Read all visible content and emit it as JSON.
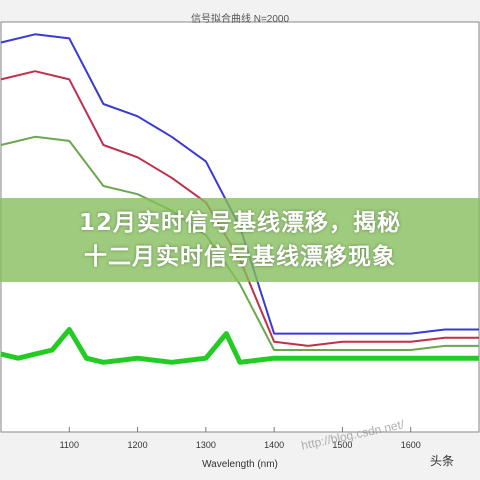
{
  "chart_data": {
    "type": "line",
    "title": "",
    "xlabel": "Wavelength (nm)",
    "ylabel": "",
    "xlim": [
      1000,
      1700
    ],
    "x_ticks": [
      1100,
      1200,
      1300,
      1400,
      1500,
      1600
    ],
    "grid": false,
    "series": [
      {
        "color": "#3a3ad4",
        "x": [
          1000,
          1050,
          1100,
          1150,
          1200,
          1250,
          1300,
          1350,
          1400,
          1450,
          1500,
          1550,
          1600,
          1650,
          1700
        ],
        "y": [
          0.95,
          0.97,
          0.96,
          0.8,
          0.77,
          0.72,
          0.66,
          0.5,
          0.24,
          0.24,
          0.24,
          0.24,
          0.24,
          0.25,
          0.25
        ]
      },
      {
        "color": "#c0304a",
        "x": [
          1000,
          1050,
          1100,
          1150,
          1200,
          1250,
          1300,
          1350,
          1400,
          1450,
          1500,
          1550,
          1600,
          1650,
          1700
        ],
        "y": [
          0.86,
          0.88,
          0.86,
          0.7,
          0.67,
          0.62,
          0.56,
          0.42,
          0.22,
          0.21,
          0.22,
          0.22,
          0.22,
          0.23,
          0.23
        ]
      },
      {
        "color": "#6aa84f",
        "x": [
          1000,
          1050,
          1100,
          1150,
          1200,
          1250,
          1300,
          1350,
          1400,
          1450,
          1500,
          1550,
          1600,
          1650,
          1700
        ],
        "y": [
          0.7,
          0.72,
          0.71,
          0.6,
          0.58,
          0.54,
          0.48,
          0.36,
          0.2,
          0.2,
          0.2,
          0.2,
          0.2,
          0.21,
          0.21
        ]
      },
      {
        "color": "#22cc22",
        "x": [
          1000,
          1025,
          1050,
          1075,
          1100,
          1125,
          1150,
          1200,
          1250,
          1300,
          1330,
          1350,
          1400,
          1450,
          1500,
          1550,
          1600,
          1650,
          1700
        ],
        "y": [
          0.19,
          0.18,
          0.19,
          0.2,
          0.25,
          0.18,
          0.17,
          0.18,
          0.17,
          0.18,
          0.24,
          0.17,
          0.18,
          0.18,
          0.18,
          0.18,
          0.18,
          0.18,
          0.18
        ]
      }
    ]
  },
  "header": {
    "title": "信号拟合曲线 N=2000"
  },
  "banner": {
    "line1": "12月实时信号基线漂移，揭秘",
    "line2": "十二月实时信号基线漂移现象"
  },
  "watermark": {
    "url": "http://blog.csdn.net/",
    "brand": "头条"
  }
}
